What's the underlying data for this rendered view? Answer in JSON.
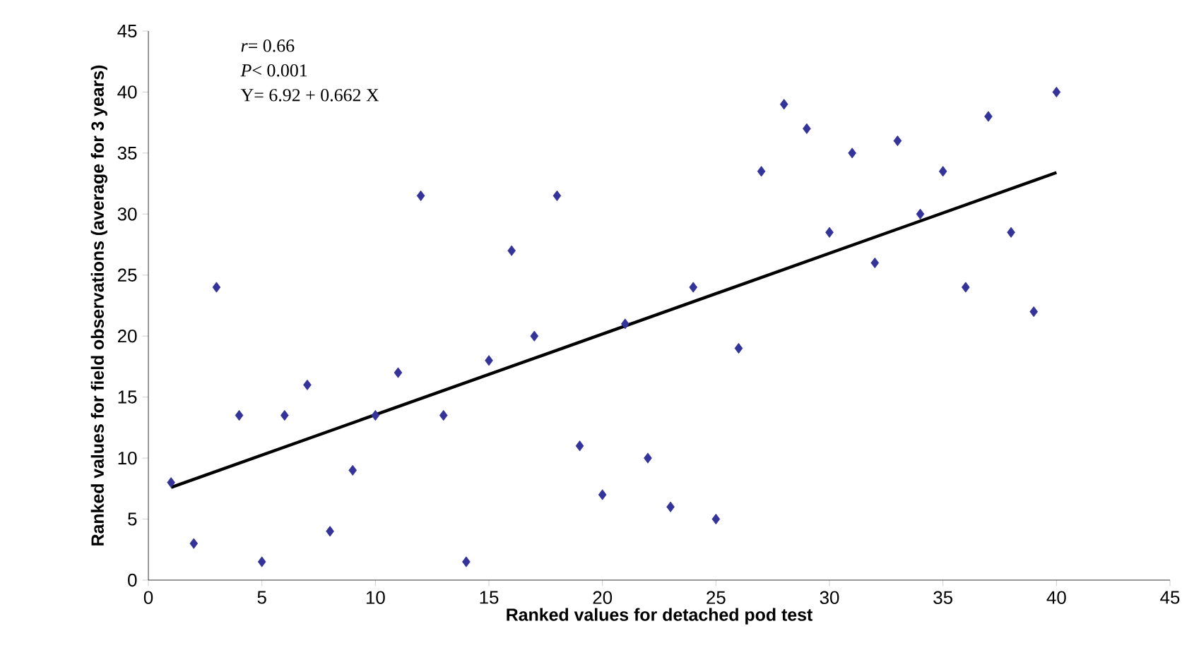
{
  "chart_data": {
    "type": "scatter",
    "xlabel": "Ranked values for detached pod test",
    "ylabel": "Ranked values for field observations (average for 3 years)",
    "annotations": [
      "*r*= 0.66",
      "*P*< 0.001",
      "Y= 6.92 + 0.662 X"
    ],
    "x": [
      1,
      2,
      3,
      4,
      5,
      6,
      7,
      8,
      9,
      10,
      11,
      12,
      13,
      14,
      15,
      16,
      17,
      18,
      19,
      20,
      21,
      22,
      23,
      24,
      25,
      26,
      27,
      28,
      29,
      30,
      31,
      32,
      33,
      34,
      35,
      36,
      37,
      38,
      39,
      40
    ],
    "series": [
      {
        "color": "#333399",
        "marker": "diamond",
        "values": [
          8,
          3,
          24,
          13.5,
          1.5,
          13.5,
          16,
          4,
          9,
          13.5,
          17,
          31.5,
          13.5,
          1.5,
          18,
          27,
          20,
          31.5,
          11,
          7,
          21,
          10,
          6,
          24,
          5,
          19,
          33.5,
          39,
          37,
          28.5,
          35,
          26,
          36,
          30,
          33.5,
          24,
          38,
          28.5,
          22,
          40
        ]
      },
      {
        "type": "line",
        "color": "#000000",
        "x": [
          1,
          40
        ],
        "values": [
          7.6,
          33.4
        ]
      }
    ],
    "xlim": [
      0,
      45
    ],
    "ylim": [
      0,
      45
    ],
    "xticks": [
      0,
      5,
      10,
      15,
      20,
      25,
      30,
      35,
      40,
      45
    ],
    "yticks": [
      0,
      5,
      10,
      15,
      20,
      25,
      30,
      35,
      40,
      45
    ]
  }
}
